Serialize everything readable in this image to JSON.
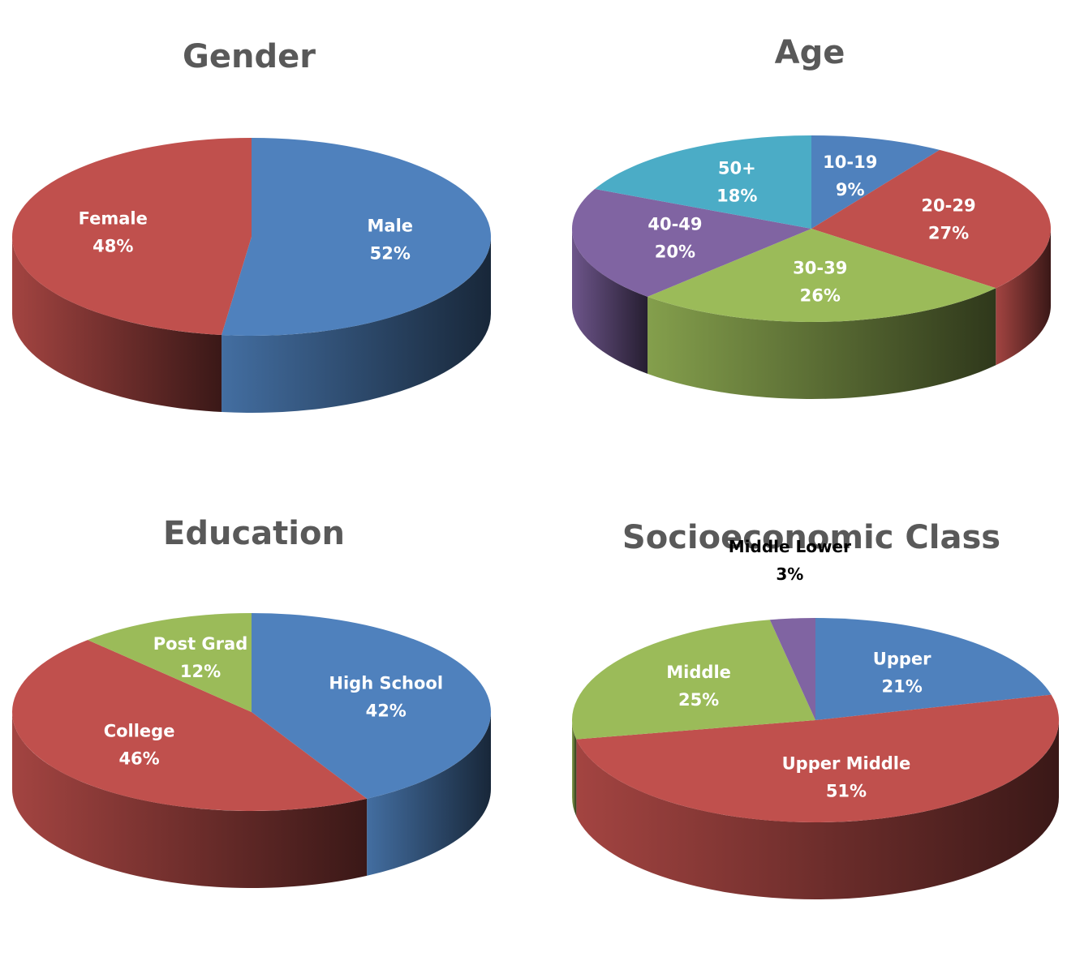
{
  "chart_data": [
    {
      "type": "pie",
      "title": "Gender",
      "categories": [
        "Male",
        "Female"
      ],
      "values": [
        52,
        48
      ],
      "value_labels": [
        "52%",
        "48%"
      ],
      "colors": [
        "#4f81bd",
        "#c0504d"
      ]
    },
    {
      "type": "pie",
      "title": "Age",
      "categories": [
        "10-19",
        "20-29",
        "30-39",
        "40-49",
        "50+"
      ],
      "values": [
        9,
        27,
        26,
        20,
        18
      ],
      "value_labels": [
        "9%",
        "27%",
        "26%",
        "20%",
        "18%"
      ],
      "colors": [
        "#4f81bd",
        "#c0504d",
        "#9bbb59",
        "#8064a2",
        "#4bacc6"
      ]
    },
    {
      "type": "pie",
      "title": "Education",
      "categories": [
        "High School",
        "College",
        "Post Grad"
      ],
      "values": [
        42,
        46,
        12
      ],
      "value_labels": [
        "42%",
        "46%",
        "12%"
      ],
      "colors": [
        "#4f81bd",
        "#c0504d",
        "#9bbb59"
      ]
    },
    {
      "type": "pie",
      "title": "Socioeconomic Class",
      "categories": [
        "Upper",
        "Upper Middle",
        "Middle",
        "Middle Lower"
      ],
      "values": [
        21,
        51,
        25,
        3
      ],
      "value_labels": [
        "21%",
        "51%",
        "25%",
        "3%"
      ],
      "colors": [
        "#4f81bd",
        "#c0504d",
        "#9bbb59",
        "#8064a2"
      ]
    }
  ]
}
